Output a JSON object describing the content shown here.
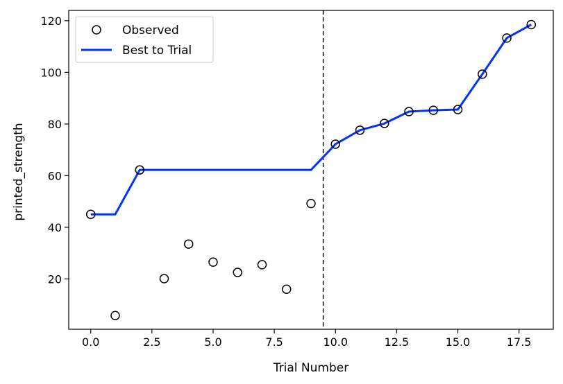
{
  "chart_data": {
    "type": "scatter",
    "xlabel": "Trial Number",
    "ylabel": "printed_strength",
    "xlim": [
      -0.9,
      18.9
    ],
    "ylim": [
      0.5,
      124
    ],
    "x_ticks": [
      0.0,
      2.5,
      5.0,
      7.5,
      10.0,
      12.5,
      15.0,
      17.5
    ],
    "x_tick_labels": [
      "0.0",
      "2.5",
      "5.0",
      "7.5",
      "10.0",
      "12.5",
      "15.0",
      "17.5"
    ],
    "y_ticks": [
      20,
      40,
      60,
      80,
      100,
      120
    ],
    "y_tick_labels": [
      "20",
      "40",
      "60",
      "80",
      "100",
      "120"
    ],
    "grid": false,
    "legend_position": "top-left",
    "series": [
      {
        "name": "Observed",
        "kind": "scatter",
        "marker": "open-circle",
        "color": "#000000",
        "x": [
          0,
          1,
          2,
          3,
          4,
          5,
          6,
          7,
          8,
          9,
          10,
          11,
          12,
          13,
          14,
          15,
          16,
          17,
          18
        ],
        "y": [
          45.0,
          5.8,
          62.2,
          20.1,
          33.5,
          26.5,
          22.5,
          25.5,
          16.0,
          49.2,
          72.2,
          77.6,
          80.2,
          84.8,
          85.3,
          85.6,
          99.3,
          113.3,
          118.5
        ]
      },
      {
        "name": "Best to Trial",
        "kind": "line",
        "color": "#0033ff",
        "x": [
          0,
          1,
          2,
          3,
          4,
          5,
          6,
          7,
          8,
          9,
          10,
          11,
          12,
          13,
          14,
          15,
          16,
          17,
          18
        ],
        "y": [
          45.0,
          45.0,
          62.2,
          62.2,
          62.2,
          62.2,
          62.2,
          62.2,
          62.2,
          62.2,
          72.2,
          77.6,
          80.2,
          84.8,
          85.3,
          85.6,
          99.3,
          113.3,
          118.5
        ]
      }
    ],
    "vline": {
      "x": 9.5,
      "style": "dashed",
      "color": "#000000"
    }
  }
}
